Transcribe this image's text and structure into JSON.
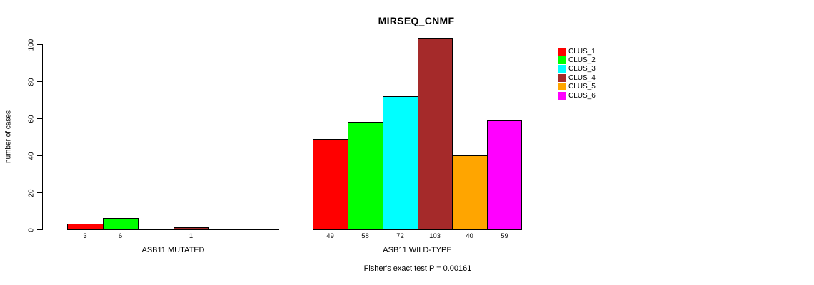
{
  "chart_data": {
    "type": "bar",
    "title": "MIRSEQ_CNMF",
    "ylabel": "number of cases",
    "ylim": [
      0,
      110
    ],
    "yticks": [
      0,
      20,
      40,
      60,
      80,
      100
    ],
    "grid": false,
    "legend_position": "top-right",
    "legend": [
      {
        "label": "CLUS_1",
        "color": "#FF0000"
      },
      {
        "label": "CLUS_2",
        "color": "#00FF00"
      },
      {
        "label": "CLUS_3",
        "color": "#00FFFF"
      },
      {
        "label": "CLUS_4",
        "color": "#A52A2A"
      },
      {
        "label": "CLUS_5",
        "color": "#FFA500"
      },
      {
        "label": "CLUS_6",
        "color": "#FF00FF"
      }
    ],
    "groups": [
      {
        "label": "ASB11 MUTATED",
        "values": [
          3,
          6,
          0,
          1,
          0,
          0
        ]
      },
      {
        "label": "ASB11 WILD-TYPE",
        "values": [
          49,
          58,
          72,
          103,
          40,
          59
        ]
      }
    ],
    "bar_value_labels_shown": [
      [
        "3",
        "6",
        "",
        "1",
        "",
        ""
      ],
      [
        "49",
        "58",
        "72",
        "103",
        "40",
        "59"
      ]
    ],
    "annotation": "Fisher's exact test P = 0.00161",
    "axis_color": "#000000",
    "text_color": "#000000"
  }
}
